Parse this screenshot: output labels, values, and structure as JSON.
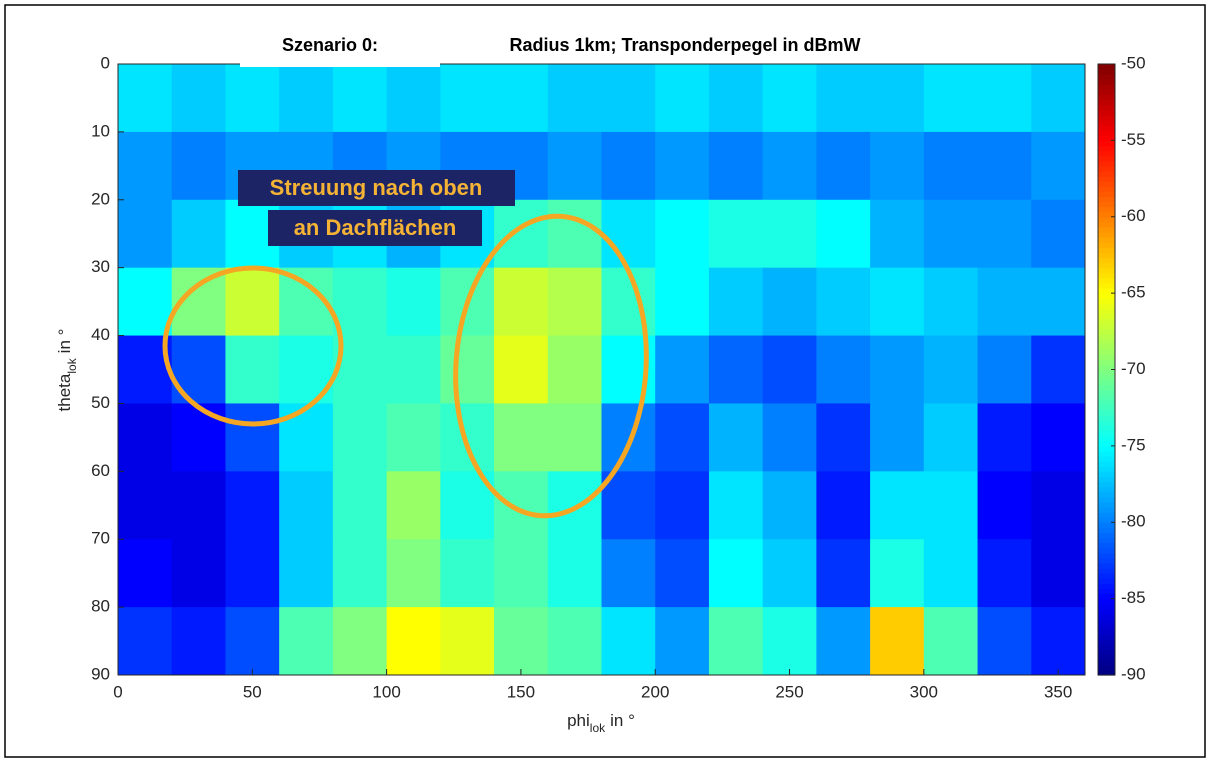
{
  "chart_data": {
    "type": "heatmap",
    "title": "Radius 1km; Transponderpegel in dBmW",
    "annotations": [
      "Szenario 0:",
      "Streuung nach oben",
      "an Dachflächen"
    ],
    "xlabel": {
      "main": "phi",
      "subscript": "lok",
      "unit": "in °"
    },
    "ylabel": {
      "main": "theta",
      "subscript": "lok",
      "unit": "in °"
    },
    "xlim": [
      0,
      360
    ],
    "xticks": [
      0,
      50,
      100,
      150,
      200,
      250,
      300,
      350
    ],
    "ylim": [
      0,
      90
    ],
    "yticks": [
      0,
      10,
      20,
      30,
      40,
      50,
      60,
      70,
      80,
      90
    ],
    "yreverse": true,
    "colormap": "jet",
    "clim": [
      -90,
      -50
    ],
    "colorbar_ticks": [
      -50,
      -55,
      -60,
      -65,
      -70,
      -75,
      -80,
      -85,
      -90
    ],
    "xbins": [
      0,
      20,
      40,
      60,
      80,
      100,
      120,
      140,
      160,
      180,
      200,
      220,
      240,
      260,
      280,
      300,
      320,
      340,
      360
    ],
    "ybins": [
      0,
      10,
      20,
      30,
      40,
      50,
      60,
      70,
      80,
      90
    ],
    "values": [
      [
        -76,
        -77,
        -76,
        -77,
        -76,
        -77,
        -76,
        -76,
        -77,
        -77,
        -76,
        -77,
        -76,
        -77,
        -77,
        -76,
        -76,
        -77
      ],
      [
        -79,
        -80,
        -79,
        -79,
        -80,
        -79,
        -80,
        -80,
        -79,
        -80,
        -79,
        -80,
        -79,
        -80,
        -79,
        -80,
        -80,
        -79
      ],
      [
        -79,
        -77,
        -75,
        -77,
        -76,
        -78,
        -76,
        -73,
        -72,
        -76,
        -75,
        -74,
        -74,
        -75,
        -78,
        -79,
        -79,
        -80
      ],
      [
        -75,
        -70,
        -67,
        -72,
        -73,
        -74,
        -72,
        -67,
        -68,
        -73,
        -75,
        -77,
        -78,
        -77,
        -76,
        -77,
        -78,
        -78
      ],
      [
        -84,
        -82,
        -73,
        -74,
        -73,
        -73,
        -71,
        -66,
        -69,
        -75,
        -79,
        -81,
        -82,
        -80,
        -79,
        -78,
        -80,
        -83
      ],
      [
        -86,
        -85,
        -82,
        -76,
        -73,
        -72,
        -73,
        -70,
        -70,
        -80,
        -82,
        -78,
        -80,
        -83,
        -79,
        -77,
        -84,
        -85
      ],
      [
        -86,
        -86,
        -84,
        -77,
        -73,
        -69,
        -74,
        -72,
        -74,
        -82,
        -83,
        -76,
        -78,
        -84,
        -76,
        -76,
        -85,
        -86
      ],
      [
        -85,
        -86,
        -84,
        -77,
        -73,
        -70,
        -73,
        -72,
        -74,
        -80,
        -82,
        -75,
        -77,
        -83,
        -74,
        -76,
        -84,
        -86
      ],
      [
        -83,
        -84,
        -82,
        -72,
        -70,
        -65,
        -66,
        -71,
        -72,
        -76,
        -79,
        -72,
        -74,
        -79,
        -63,
        -72,
        -82,
        -84
      ]
    ]
  }
}
